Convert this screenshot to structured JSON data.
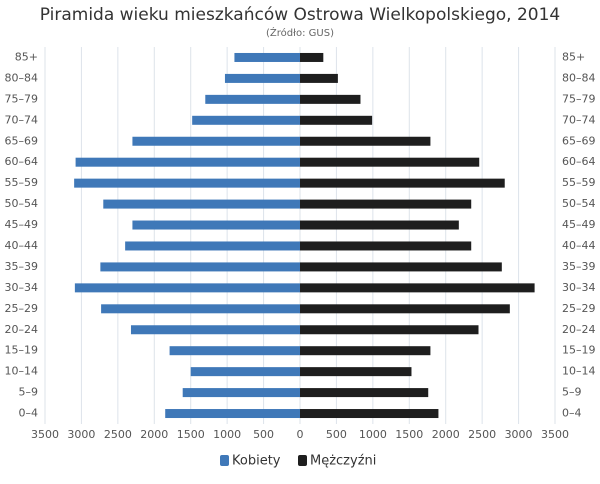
{
  "chart_data": {
    "type": "pyramid",
    "title": "Piramida wieku mieszkańców Ostrowa Wielkopolskiego, 2014",
    "subtitle": "(Źródło: GUS)",
    "categories": [
      "85+",
      "80–84",
      "75–79",
      "70–74",
      "65–69",
      "60–64",
      "55–59",
      "50–54",
      "45–49",
      "40–44",
      "35–39",
      "30–34",
      "25–29",
      "20–24",
      "15–19",
      "10–14",
      "5–9",
      "0–4"
    ],
    "series": [
      {
        "name": "Kobiety",
        "color": "#3f78b8",
        "side": "left",
        "values": [
          900,
          1030,
          1300,
          1480,
          2300,
          3080,
          3100,
          2700,
          2300,
          2400,
          2740,
          3090,
          2730,
          2320,
          1790,
          1500,
          1610,
          1850
        ]
      },
      {
        "name": "Mężczyźni",
        "color": "#1e1e1e",
        "side": "right",
        "values": [
          320,
          520,
          830,
          990,
          1790,
          2460,
          2810,
          2350,
          2180,
          2350,
          2770,
          3220,
          2880,
          2450,
          1790,
          1530,
          1760,
          1900
        ]
      }
    ],
    "xlim": [
      -3500,
      3500
    ],
    "xticks": [
      {
        "value": -3500,
        "label": "3500"
      },
      {
        "value": -3000,
        "label": "3000"
      },
      {
        "value": -2500,
        "label": "2500"
      },
      {
        "value": -2000,
        "label": "2000"
      },
      {
        "value": -1500,
        "label": "1500"
      },
      {
        "value": -1000,
        "label": "1000"
      },
      {
        "value": -500,
        "label": "500"
      },
      0,
      500,
      1000,
      1500,
      2000,
      2500,
      3000,
      3500
    ],
    "grid": true
  }
}
